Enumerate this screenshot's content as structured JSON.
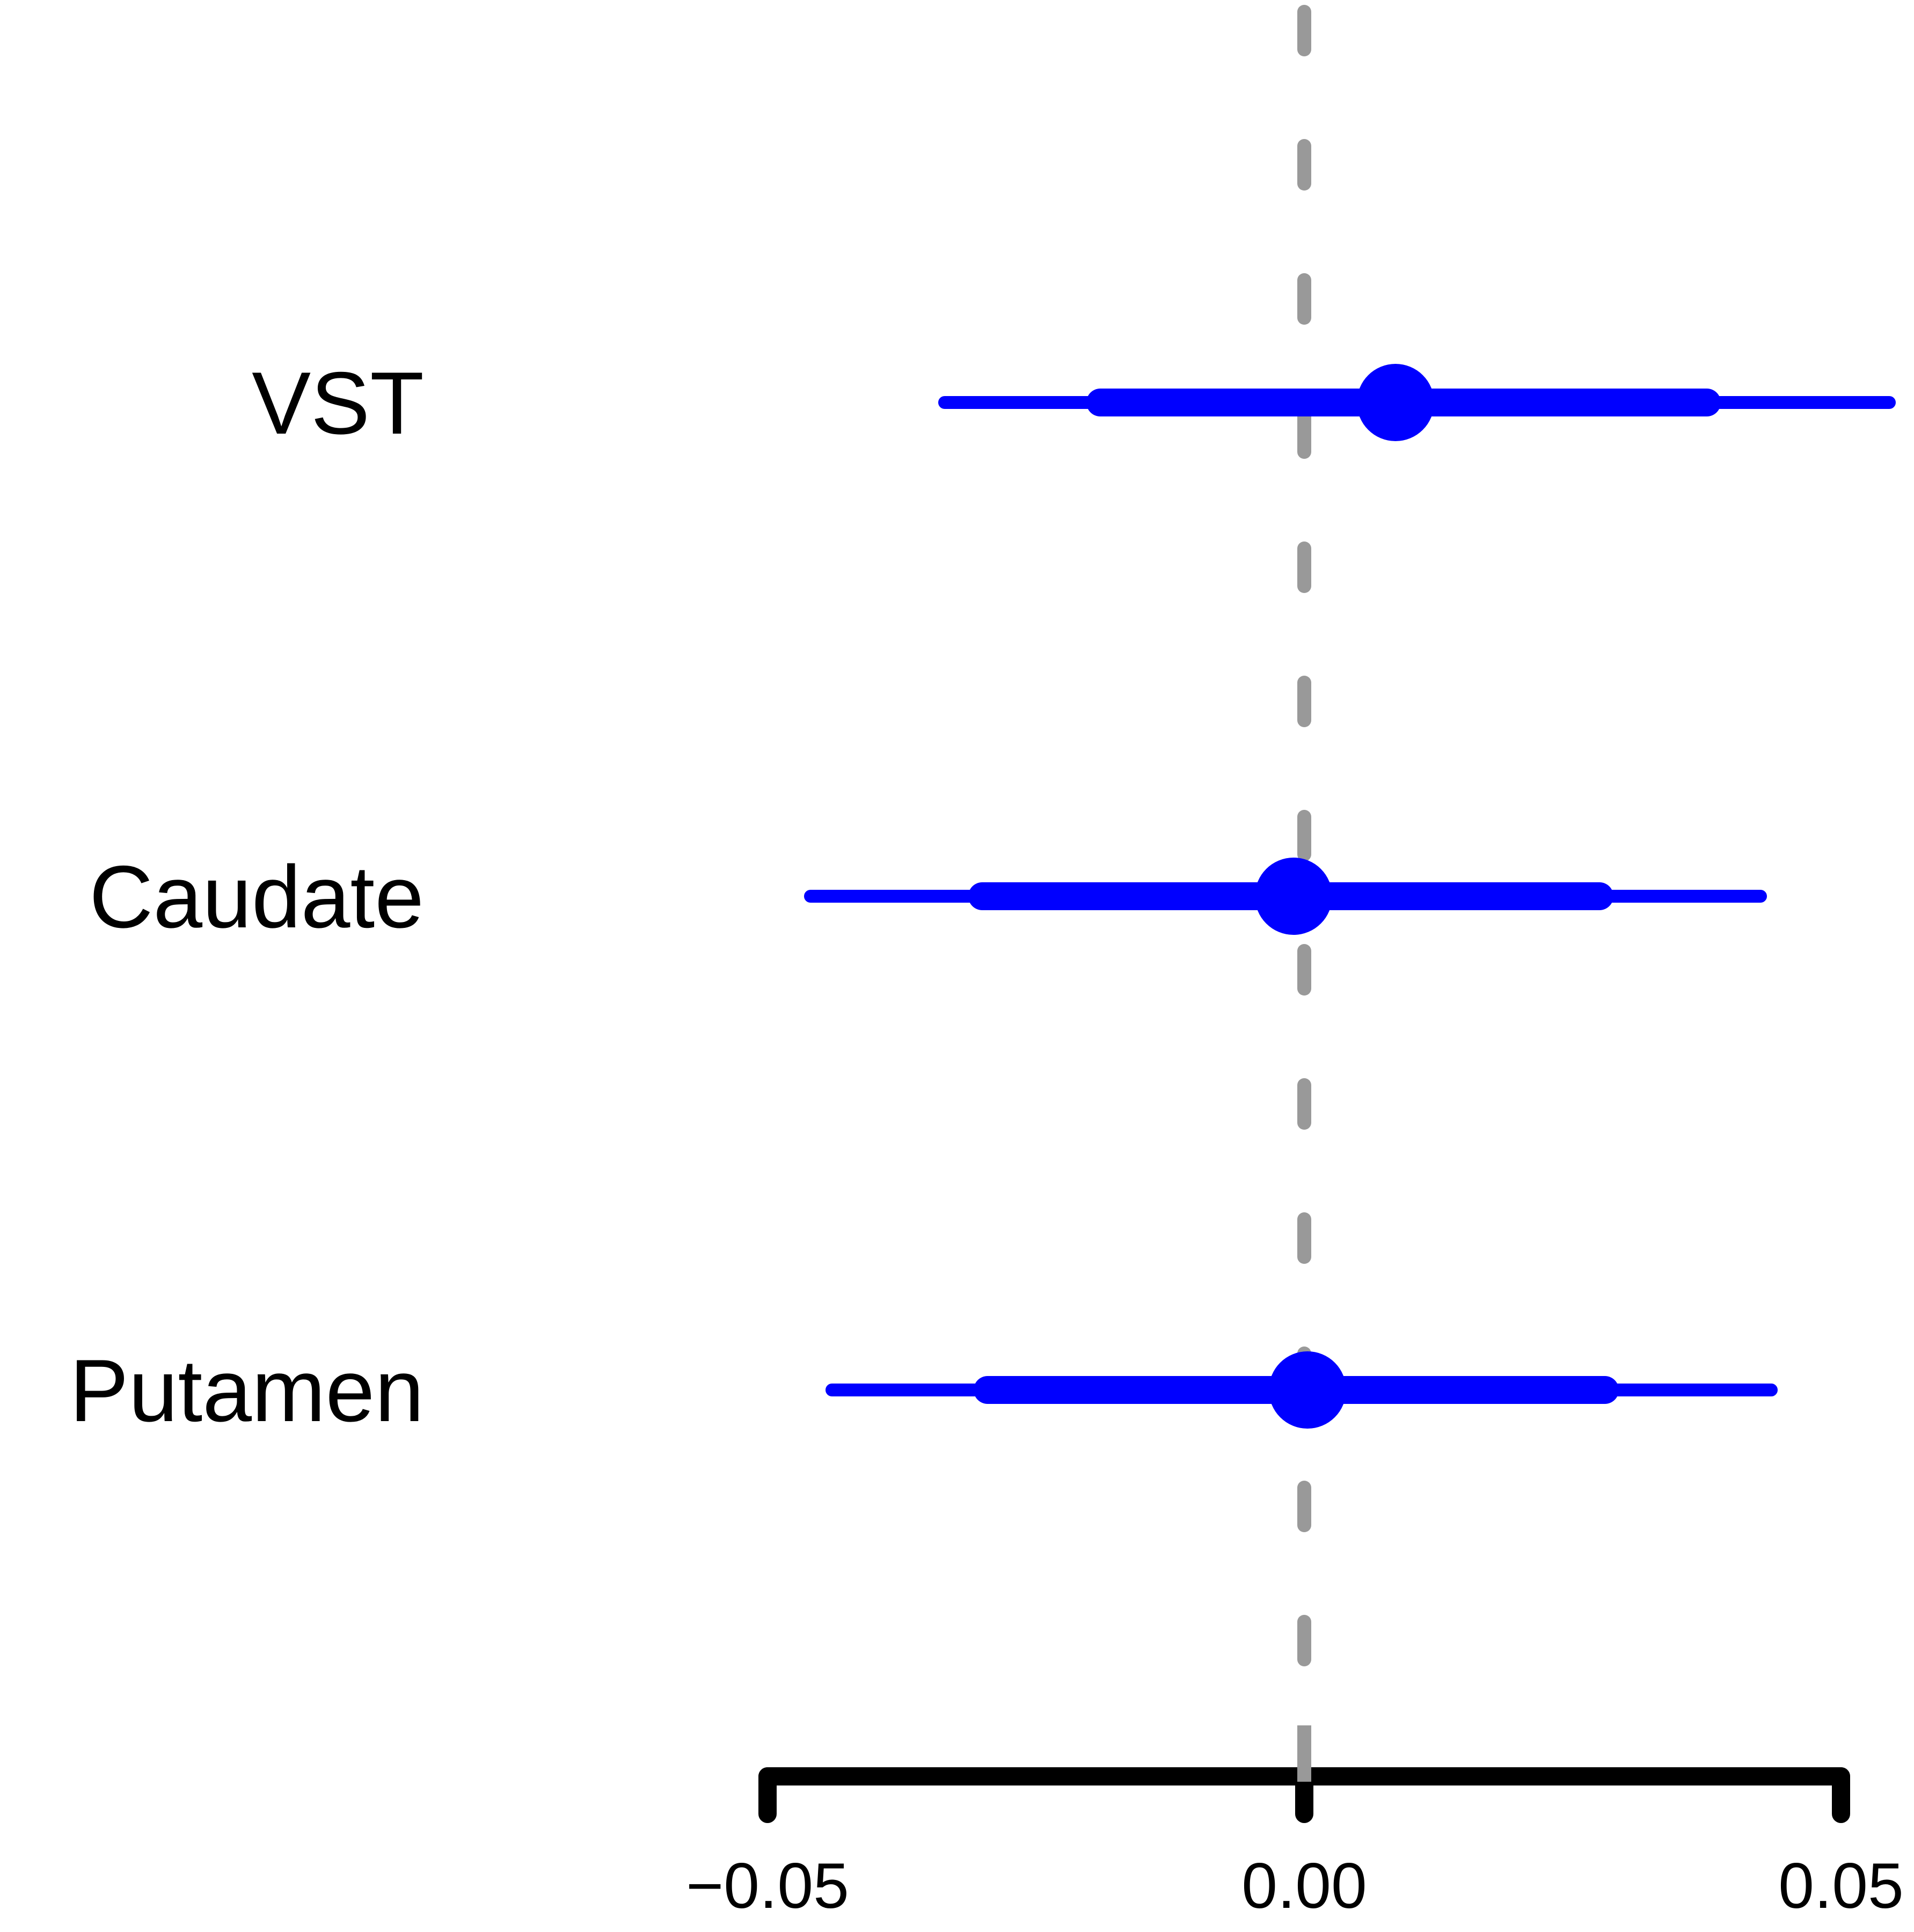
{
  "chart_data": {
    "type": "forest",
    "categories": [
      "VST",
      "Caudate",
      "Putamen"
    ],
    "series": [
      {
        "estimates": [
          0.0085,
          -0.001,
          0.0003
        ],
        "inner_interval_low": [
          -0.019,
          -0.03,
          -0.0295
        ],
        "inner_interval_high": [
          0.0375,
          0.0275,
          0.028
        ],
        "outer_interval_low": [
          -0.0335,
          -0.046,
          -0.044
        ],
        "outer_interval_high": [
          0.0545,
          0.0425,
          0.0435
        ]
      }
    ],
    "x_ticks": [
      -0.05,
      0.0,
      0.05
    ],
    "x_tick_labels": [
      "−0.05",
      "0.00",
      "0.05"
    ],
    "reference_line": 0.0,
    "xlim": [
      -0.05,
      0.05
    ],
    "colors": {
      "interval": "#0000ff",
      "point": "#0000ff",
      "reference_line": "#999999",
      "axis": "#000000"
    },
    "title": "",
    "xlabel": "",
    "ylabel": ""
  }
}
